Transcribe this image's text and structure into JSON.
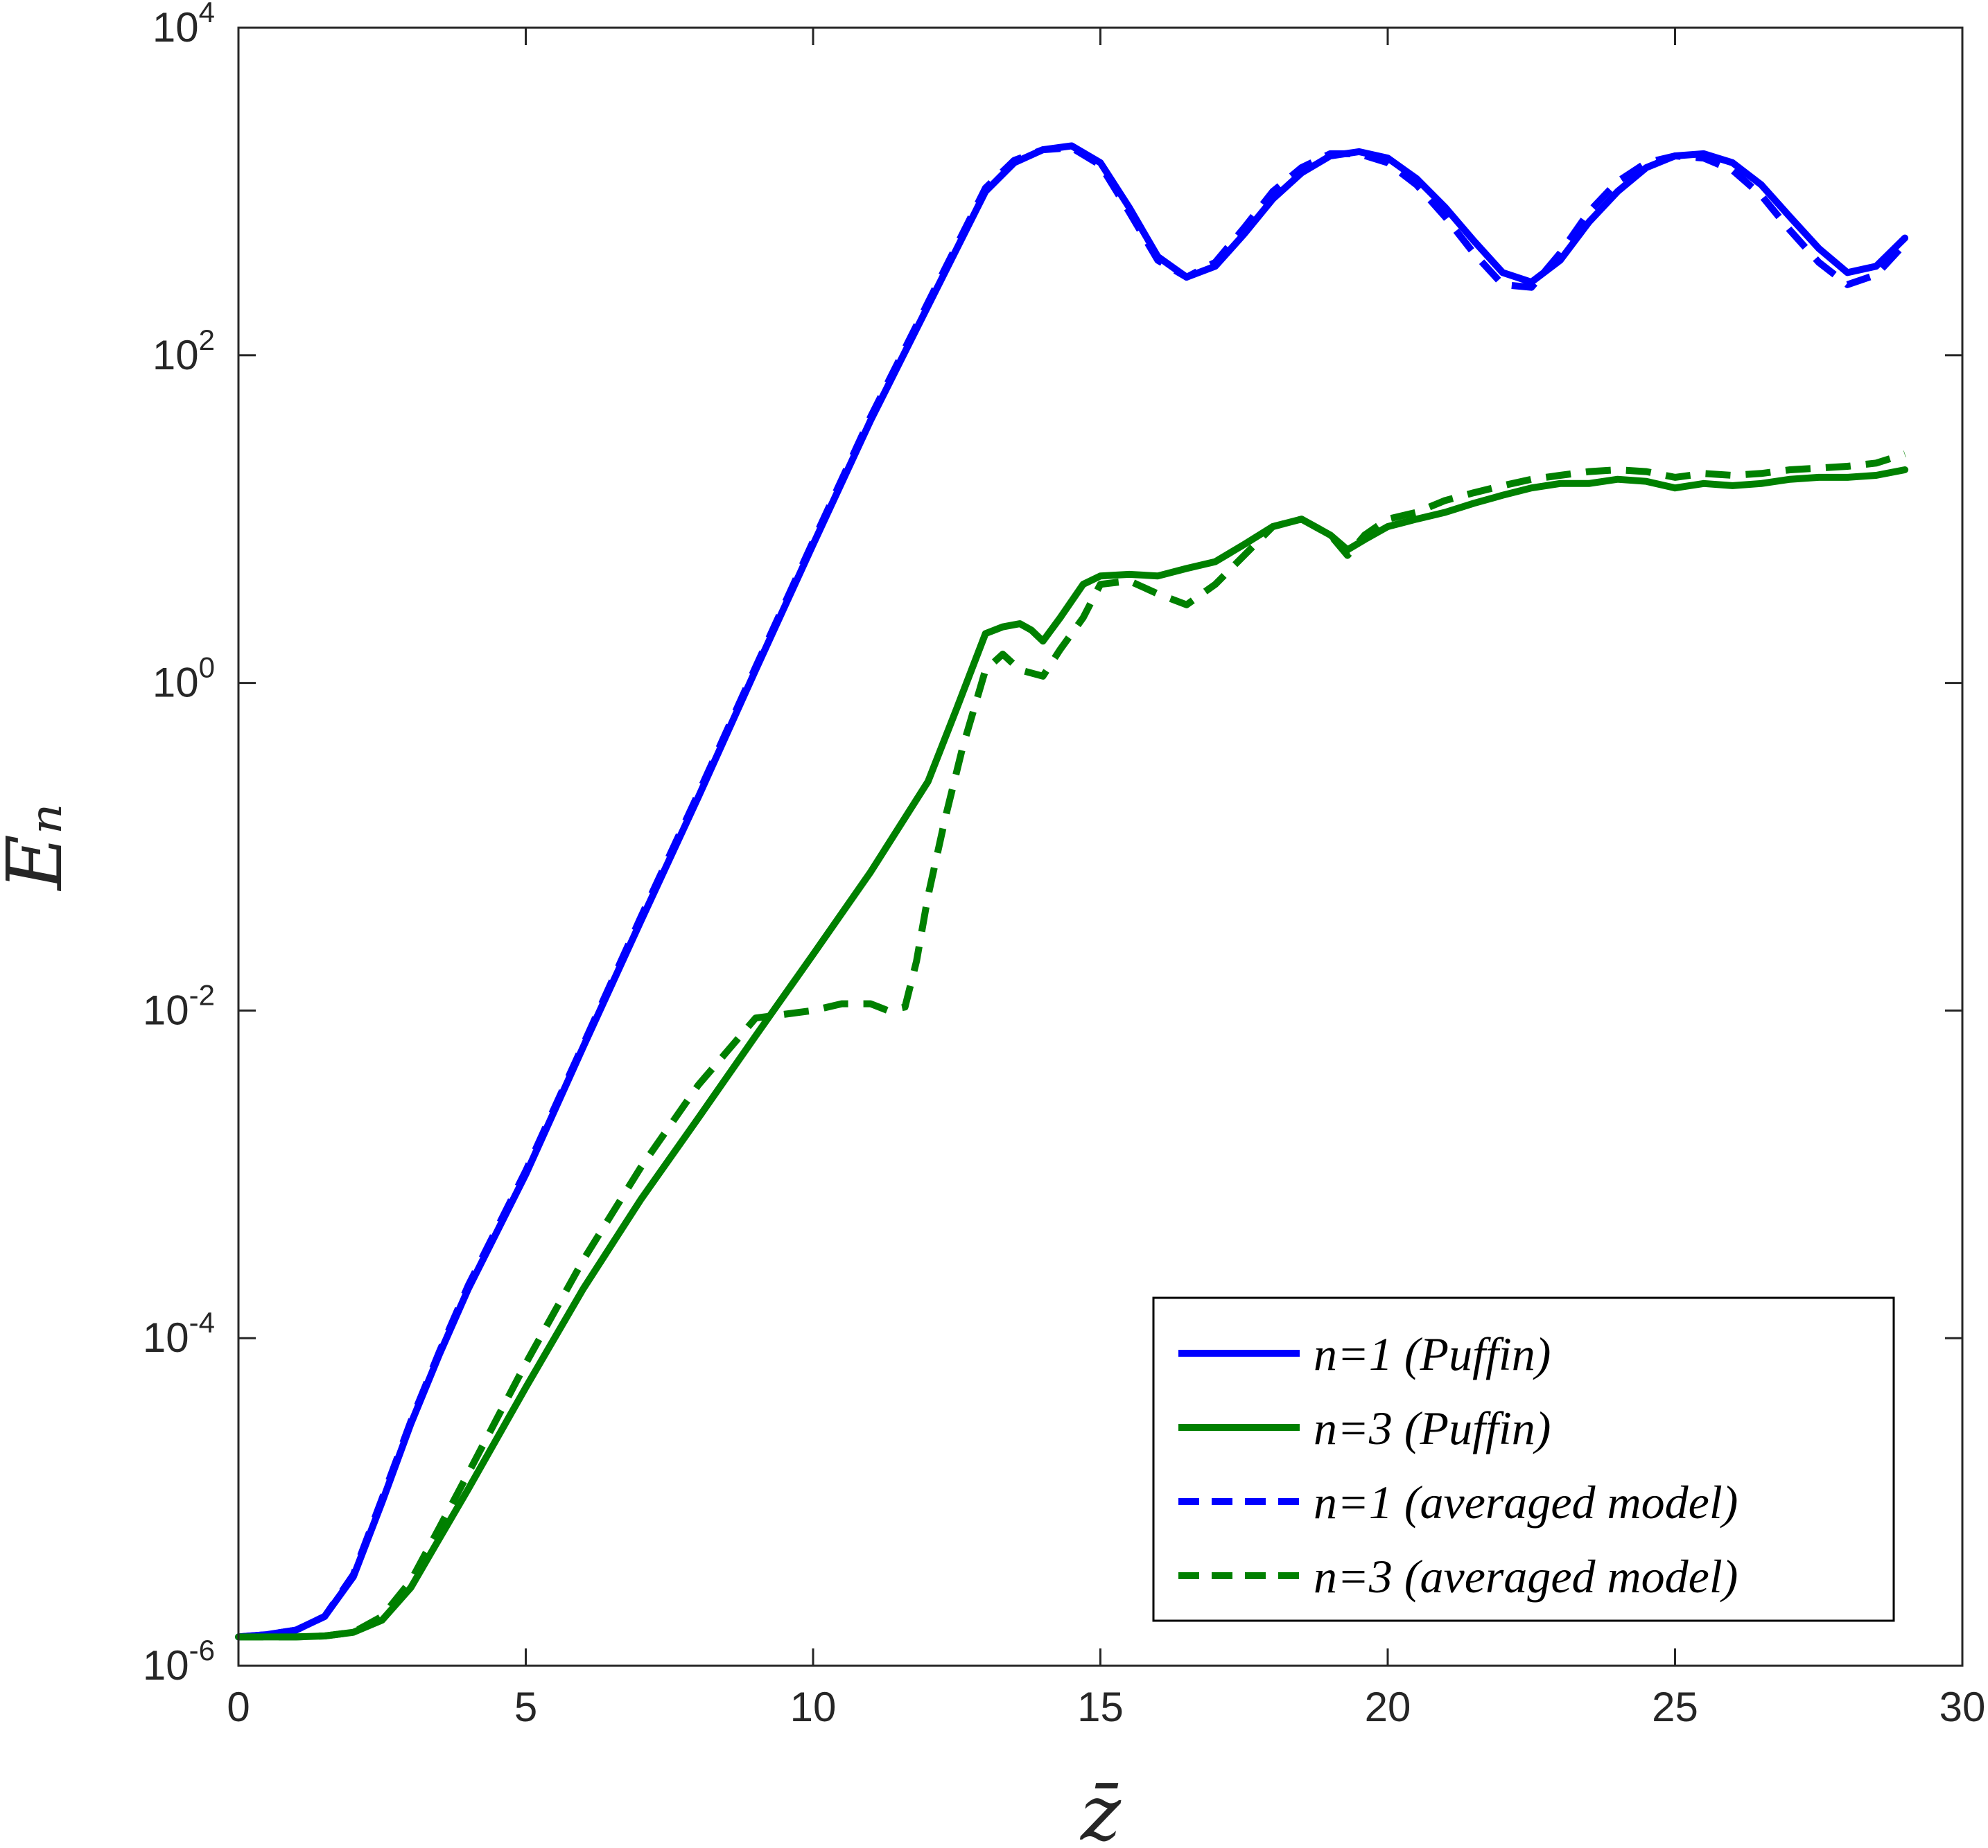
{
  "chart_data": {
    "type": "line",
    "title": "",
    "xlabel": "z̄",
    "ylabel": "Eₙ",
    "xlim": [
      0,
      30
    ],
    "ylim": [
      1e-06,
      10000.0
    ],
    "yscale": "log",
    "grid": false,
    "legend_position": "bottom-right",
    "x_ticks": [
      "0",
      "5",
      "10",
      "15",
      "20",
      "25",
      "30"
    ],
    "y_ticks": [
      {
        "base": "10",
        "exp": "-6",
        "value": 1e-06
      },
      {
        "base": "10",
        "exp": "-4",
        "value": 0.0001
      },
      {
        "base": "10",
        "exp": "-2",
        "value": 0.01
      },
      {
        "base": "10",
        "exp": "0",
        "value": 1
      },
      {
        "base": "10",
        "exp": "2",
        "value": 100
      },
      {
        "base": "10",
        "exp": "4",
        "value": 10000
      }
    ],
    "series": [
      {
        "name": "n=1 (Puffin)",
        "color": "#0000ff",
        "dash": "solid",
        "x": [
          0,
          0.5,
          1,
          1.5,
          2,
          2.5,
          3,
          3.5,
          4,
          5,
          6,
          7,
          8,
          9,
          10,
          11,
          12,
          13,
          13.5,
          14,
          14.5,
          15,
          15.5,
          16,
          16.5,
          17,
          17.5,
          18,
          18.5,
          19,
          19.5,
          20,
          20.5,
          21,
          21.5,
          22,
          22.5,
          23,
          23.5,
          24,
          24.5,
          25,
          25.5,
          26,
          26.5,
          27,
          27.5,
          28,
          28.5,
          29
        ],
        "y": [
          1.5e-06,
          1.55e-06,
          1.65e-06,
          2e-06,
          3.5e-06,
          1e-05,
          3e-05,
          8e-05,
          0.0002,
          0.001,
          0.006,
          0.035,
          0.2,
          1.2,
          7,
          40,
          200,
          1000,
          1500,
          1800,
          1900,
          1500,
          800,
          400,
          300,
          350,
          550,
          900,
          1300,
          1650,
          1750,
          1600,
          1200,
          800,
          500,
          320,
          280,
          380,
          650,
          1000,
          1400,
          1650,
          1700,
          1500,
          1100,
          700,
          450,
          320,
          350,
          520
        ]
      },
      {
        "name": "n=3 (Puffin)",
        "color": "#008000",
        "dash": "solid",
        "x": [
          0,
          0.5,
          1,
          1.5,
          2,
          2.5,
          3,
          3.5,
          4,
          5,
          6,
          7,
          8,
          9,
          10,
          11,
          12,
          12.5,
          13,
          13.3,
          13.6,
          13.8,
          14,
          14.3,
          14.7,
          15,
          15.5,
          16,
          16.5,
          17,
          17.5,
          18,
          18.5,
          19,
          19.3,
          19.6,
          20,
          20.5,
          21,
          21.5,
          22,
          22.5,
          23,
          23.5,
          24,
          24.5,
          25,
          25.5,
          26,
          26.5,
          27,
          27.5,
          28,
          28.5,
          29
        ],
        "y": [
          1.5e-06,
          1.5e-06,
          1.5e-06,
          1.52e-06,
          1.6e-06,
          1.9e-06,
          3e-06,
          6e-06,
          1.2e-05,
          5e-05,
          0.0002,
          0.0007,
          0.0022,
          0.007,
          0.022,
          0.07,
          0.25,
          0.7,
          2.0,
          2.2,
          2.3,
          2.1,
          1.8,
          2.5,
          4.0,
          4.5,
          4.6,
          4.5,
          5.0,
          5.5,
          7.0,
          9.0,
          10.0,
          8.0,
          6.5,
          7.5,
          9.0,
          10.0,
          11.0,
          12.5,
          14.0,
          15.5,
          16.5,
          16.5,
          17.5,
          17.0,
          15.5,
          16.5,
          16.0,
          16.5,
          17.5,
          18.0,
          18.0,
          18.5,
          20.0
        ]
      },
      {
        "name": "n=1 (averaged model)",
        "color": "#0000ff",
        "dash": "dashed",
        "x": [
          0,
          0.5,
          1,
          1.5,
          2,
          2.5,
          3,
          3.5,
          4,
          5,
          6,
          7,
          8,
          9,
          10,
          11,
          12,
          13,
          13.5,
          14,
          14.5,
          15,
          15.5,
          16,
          16.5,
          17,
          17.5,
          18,
          18.5,
          19,
          19.5,
          20,
          20.5,
          21,
          21.5,
          22,
          22.5,
          23,
          23.5,
          24,
          24.5,
          25,
          25.5,
          26,
          26.5,
          27,
          27.5,
          28,
          28.5,
          29
        ],
        "y": [
          1.5e-06,
          1.55e-06,
          1.65e-06,
          2e-06,
          3.6e-06,
          1.05e-05,
          3.1e-05,
          8.3e-05,
          0.00021,
          0.00105,
          0.0062,
          0.037,
          0.21,
          1.25,
          7.3,
          42,
          210,
          1050,
          1550,
          1800,
          1850,
          1450,
          750,
          380,
          300,
          370,
          600,
          1000,
          1400,
          1700,
          1700,
          1500,
          1100,
          700,
          420,
          270,
          260,
          420,
          750,
          1150,
          1500,
          1650,
          1600,
          1350,
          950,
          580,
          370,
          270,
          310,
          480
        ]
      },
      {
        "name": "n=3 (averaged model)",
        "color": "#008000",
        "dash": "dashed",
        "x": [
          0,
          0.5,
          1,
          1.5,
          2,
          2.5,
          3,
          3.5,
          4,
          5,
          6,
          7,
          8,
          9,
          10,
          10.5,
          11,
          11.3,
          11.6,
          11.8,
          12,
          12.3,
          12.6,
          13,
          13.3,
          13.6,
          14,
          14.3,
          14.7,
          15,
          15.5,
          16,
          16.5,
          17,
          17.5,
          18,
          18.5,
          19,
          19.3,
          19.6,
          20,
          20.5,
          21,
          21.5,
          22,
          22.5,
          23,
          23.5,
          24,
          24.5,
          25,
          25.5,
          26,
          26.5,
          27,
          27.5,
          28,
          28.5,
          29
        ],
        "y": [
          1.5e-06,
          1.5e-06,
          1.5e-06,
          1.52e-06,
          1.6e-06,
          2e-06,
          3.3e-06,
          7e-06,
          1.5e-05,
          7e-05,
          0.0003,
          0.0011,
          0.0035,
          0.009,
          0.01,
          0.011,
          0.011,
          0.01,
          0.0105,
          0.02,
          0.05,
          0.15,
          0.4,
          1.2,
          1.5,
          1.2,
          1.1,
          1.6,
          2.5,
          4.0,
          4.2,
          3.5,
          3.0,
          4.0,
          6.0,
          9.0,
          10.0,
          8.0,
          6.0,
          8.0,
          10.0,
          11.0,
          13.0,
          14.5,
          16.0,
          17.5,
          18.5,
          19.5,
          20.0,
          19.5,
          18.0,
          19.0,
          18.5,
          19.0,
          20.0,
          20.5,
          21.0,
          22.0,
          25.0
        ]
      }
    ]
  }
}
